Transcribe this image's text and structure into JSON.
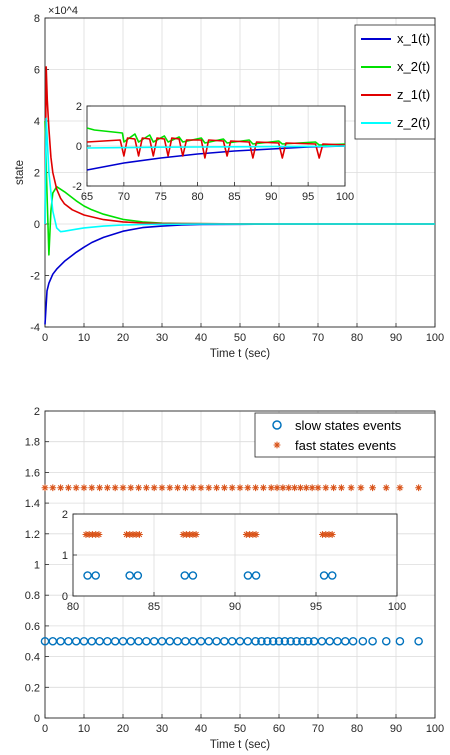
{
  "colors": {
    "x1": "#0000d0",
    "x2": "#00e000",
    "z1": "#e00000",
    "z2": "#00ffff",
    "slow": "#0072bd",
    "fast": "#d95319",
    "grid": "#dcdcdc",
    "axis": "#262626"
  },
  "chart_data": [
    {
      "id": "top-main",
      "type": "line",
      "title": "",
      "xlabel": "Time t (sec)",
      "ylabel": "state",
      "exponent_label": "×10^4",
      "xlim": [
        0,
        100
      ],
      "ylim": [
        -4,
        8
      ],
      "xticks": [
        0,
        10,
        20,
        30,
        40,
        50,
        60,
        70,
        80,
        90,
        100
      ],
      "yticks": [
        -4,
        -2,
        0,
        2,
        4,
        6,
        8
      ],
      "grid": true,
      "legend": "top-right",
      "series": [
        {
          "name": "x_1(t)",
          "key": "x1",
          "x": [
            0,
            0.5,
            1,
            2,
            3,
            5,
            8,
            10,
            12,
            15,
            20,
            25,
            30,
            35,
            40,
            50,
            60,
            80,
            100
          ],
          "y": [
            -3.9,
            -2.6,
            -2.3,
            -1.95,
            -1.75,
            -1.45,
            -1.1,
            -0.9,
            -0.72,
            -0.52,
            -0.28,
            -0.14,
            -0.08,
            -0.04,
            -0.02,
            -0.01,
            -0.005,
            0,
            0
          ]
        },
        {
          "name": "x_2(t)",
          "key": "x2",
          "x": [
            0,
            0.5,
            1,
            1.5,
            2,
            3,
            5,
            8,
            10,
            12,
            15,
            20,
            25,
            30,
            35,
            40,
            50,
            60,
            80,
            100
          ],
          "y": [
            4.0,
            1.2,
            -1.2,
            0.5,
            1.2,
            1.45,
            1.25,
            0.9,
            0.7,
            0.55,
            0.38,
            0.18,
            0.08,
            0.03,
            0.015,
            0.01,
            0.005,
            0,
            0,
            0
          ]
        },
        {
          "name": "z_1(t)",
          "key": "z1",
          "x": [
            0,
            0.3,
            0.6,
            1,
            1.5,
            2,
            3,
            4,
            5,
            7,
            10,
            15,
            20,
            25,
            30,
            40,
            60,
            100
          ],
          "y": [
            0,
            6.1,
            4.8,
            3.7,
            2.6,
            2.0,
            1.35,
            1.0,
            0.78,
            0.55,
            0.35,
            0.17,
            0.08,
            0.04,
            0.02,
            0.01,
            0,
            0
          ]
        },
        {
          "name": "z_2(t)",
          "key": "z2",
          "x": [
            0,
            0.3,
            1,
            2,
            3,
            4,
            5,
            8,
            10,
            15,
            20,
            25,
            30,
            40,
            60,
            100
          ],
          "y": [
            0,
            4.1,
            2.0,
            0.5,
            -0.15,
            -0.3,
            -0.28,
            -0.2,
            -0.15,
            -0.08,
            -0.04,
            -0.02,
            -0.01,
            0,
            0,
            0
          ]
        }
      ]
    },
    {
      "id": "top-inset",
      "type": "line",
      "xlim": [
        65,
        100
      ],
      "ylim": [
        -2,
        2
      ],
      "xticks": [
        65,
        70,
        75,
        80,
        85,
        90,
        95,
        100
      ],
      "yticks": [
        -2,
        0,
        2
      ],
      "grid": true,
      "series": [
        {
          "key": "x1",
          "x": [
            65,
            70,
            75,
            80,
            85,
            90,
            95,
            100
          ],
          "y": [
            -1.2,
            -0.85,
            -0.6,
            -0.4,
            -0.25,
            -0.15,
            -0.05,
            0
          ]
        },
        {
          "key": "x2",
          "x": [
            65,
            66,
            69.8,
            70,
            71.5,
            72,
            73.5,
            74,
            75.5,
            76,
            77.5,
            78,
            80.5,
            81,
            83.5,
            84,
            87,
            87.5,
            91,
            91.5,
            96,
            96.5,
            100
          ],
          "y": [
            0.9,
            0.8,
            0.65,
            0.2,
            0.6,
            0.2,
            0.55,
            0.2,
            0.5,
            0.2,
            0.45,
            0.2,
            0.4,
            0.15,
            0.35,
            0.15,
            0.3,
            0.1,
            0.25,
            0.1,
            0.2,
            0.05,
            0.1
          ]
        },
        {
          "key": "z1",
          "x": [
            65,
            69.5,
            70,
            70.5,
            71.5,
            72,
            72.5,
            73.5,
            74,
            74.5,
            75.5,
            76,
            76.5,
            77.5,
            78,
            78.5,
            80.5,
            81,
            81.5,
            83.5,
            84,
            84.5,
            87,
            87.5,
            88,
            91,
            91.5,
            92,
            96,
            96.5,
            97,
            100
          ],
          "y": [
            0.2,
            0.3,
            -0.5,
            0.4,
            0.35,
            -0.5,
            0.4,
            0.35,
            -0.5,
            0.4,
            0.35,
            -0.5,
            0.4,
            0.35,
            -0.5,
            0.3,
            0.3,
            -0.6,
            0.3,
            0.25,
            -0.5,
            0.25,
            0.2,
            -0.6,
            0.2,
            0.15,
            -0.6,
            0.15,
            0.1,
            -0.6,
            0.1,
            0.05
          ]
        },
        {
          "key": "z2",
          "x": [
            65,
            70,
            75,
            80,
            85,
            90,
            95,
            100
          ],
          "y": [
            -0.1,
            -0.08,
            -0.06,
            -0.05,
            -0.04,
            -0.03,
            -0.02,
            0
          ]
        }
      ]
    },
    {
      "id": "bottom-main",
      "type": "scatter",
      "title": "",
      "xlabel": "Time t (sec)",
      "ylabel": "",
      "xlim": [
        0,
        100
      ],
      "ylim": [
        0,
        2
      ],
      "xticks": [
        0,
        10,
        20,
        30,
        40,
        50,
        60,
        70,
        80,
        90,
        100
      ],
      "yticks": [
        0,
        0.2,
        0.4,
        0.6,
        0.8,
        1,
        1.2,
        1.4,
        1.6,
        1.8,
        2
      ],
      "grid": true,
      "legend": "top-right",
      "series": [
        {
          "name": "slow states events",
          "key": "slow",
          "marker": "o",
          "y_level": 0.5,
          "x": [
            0,
            2,
            4,
            6,
            8,
            10,
            12,
            14,
            16,
            18,
            20,
            22,
            24,
            26,
            28,
            30,
            32,
            34,
            36,
            38,
            40,
            42,
            44,
            46,
            48,
            50,
            52,
            54,
            55.5,
            57,
            58.5,
            60,
            61.5,
            63,
            64.5,
            66,
            67.5,
            69,
            71,
            73,
            75,
            77,
            79,
            81.5,
            84,
            87.5,
            91,
            95.8
          ]
        },
        {
          "name": "fast states events",
          "key": "fast",
          "marker": "*",
          "y_level": 1.5,
          "x": [
            0,
            2,
            4,
            6,
            8,
            10,
            12,
            14,
            16,
            18,
            20,
            22,
            24,
            26,
            28,
            30,
            32,
            34,
            36,
            38,
            40,
            42,
            44,
            46,
            48,
            50,
            52,
            54,
            56,
            58,
            59.5,
            61,
            62.5,
            64,
            65.5,
            67,
            68.5,
            70,
            72,
            74,
            76,
            78.5,
            81,
            84,
            87.5,
            91,
            95.8
          ]
        }
      ]
    },
    {
      "id": "bottom-inset",
      "type": "scatter",
      "xlim": [
        80,
        100
      ],
      "ylim": [
        0,
        2
      ],
      "xticks": [
        80,
        85,
        90,
        95,
        100
      ],
      "yticks": [
        0,
        1,
        2
      ],
      "grid": true,
      "series": [
        {
          "key": "slow",
          "marker": "o",
          "y_level": 0.5,
          "x": [
            80.9,
            81.4,
            83.5,
            84.0,
            86.9,
            87.4,
            90.8,
            91.3,
            95.5,
            96.0
          ]
        },
        {
          "key": "fast",
          "marker": "*",
          "y_level": 1.5,
          "x": [
            80.8,
            81.0,
            81.2,
            81.4,
            81.6,
            83.3,
            83.5,
            83.7,
            83.9,
            84.1,
            86.8,
            87.0,
            87.2,
            87.4,
            87.6,
            90.7,
            90.9,
            91.1,
            91.3,
            95.4,
            95.6,
            95.8,
            96.0
          ]
        }
      ]
    }
  ]
}
